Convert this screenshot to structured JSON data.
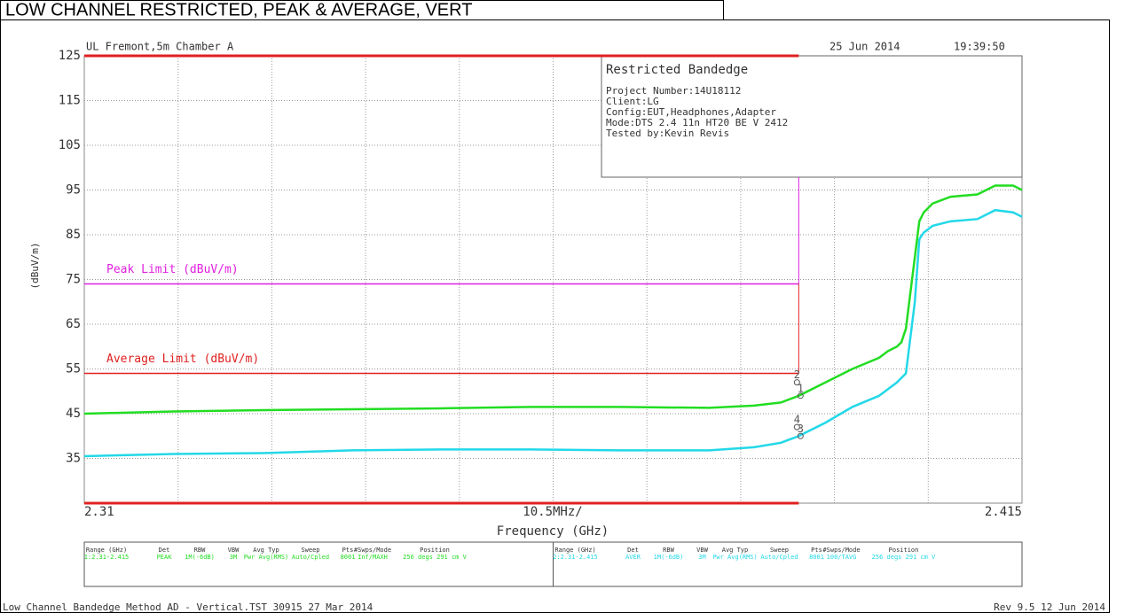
{
  "chart_data": {
    "type": "line",
    "title": "LOW CHANNEL RESTRICTED, PEAK & AVERAGE, VERT",
    "header_left": "UL Fremont,5m Chamber A",
    "header_date": "25 Jun 2014",
    "header_time": "19:39:50",
    "ylabel": "(dBuV/m)",
    "xlabel": "Frequency (GHz)",
    "x_span_label": "10.5MHz/",
    "xlim": [
      2.31,
      2.415
    ],
    "xticks": [
      2.31,
      2.415
    ],
    "x_divisions": 10,
    "ylim": [
      25,
      125
    ],
    "yticks": [
      35,
      45,
      55,
      65,
      75,
      85,
      95,
      105,
      115,
      125
    ],
    "grid": true,
    "band_edge": 2.39,
    "limits": [
      {
        "name": "Peak Limit (dBuV/m)",
        "value": 74,
        "color": "#e020e0"
      },
      {
        "name": "Average Limit (dBuV/m)",
        "value": 54,
        "color": "#e02020"
      }
    ],
    "info_box": {
      "title": "Restricted Bandedge",
      "lines": [
        "Project Number:14U18112",
        "Client:LG",
        "Config:EUT,Headphones,Adapter",
        "Mode:DTS 2.4 11n HT20 BE V 2412",
        "Tested by:Kevin Revis"
      ]
    },
    "x": [
      2.31,
      2.32,
      2.33,
      2.34,
      2.35,
      2.36,
      2.37,
      2.38,
      2.385,
      2.388,
      2.39,
      2.393,
      2.396,
      2.399,
      2.4,
      2.401,
      2.4015,
      2.402,
      2.403,
      2.4035,
      2.404,
      2.405,
      2.407,
      2.41,
      2.412,
      2.414,
      2.415
    ],
    "series": [
      {
        "color": "#22dd22",
        "values": [
          45,
          45.5,
          45.8,
          46,
          46.2,
          46.5,
          46.5,
          46.3,
          46.8,
          47.5,
          49,
          52,
          55,
          57.5,
          59,
          60,
          61,
          64,
          80,
          88,
          90,
          92,
          93.5,
          94,
          96,
          96,
          95
        ]
      },
      {
        "color": "#22d8e8",
        "values": [
          35.5,
          36,
          36.2,
          36.8,
          37,
          37,
          36.8,
          36.8,
          37.5,
          38.5,
          40,
          43,
          46.5,
          49,
          50.5,
          52,
          53,
          54,
          70,
          84,
          85.5,
          87,
          88,
          88.5,
          90.5,
          90,
          89
        ]
      }
    ],
    "markers": [
      {
        "label": "2",
        "x": 2.3898,
        "value": 52
      },
      {
        "label": "1",
        "x": 2.3902,
        "value": 49
      },
      {
        "label": "4",
        "x": 2.3898,
        "value": 42
      },
      {
        "label": "3",
        "x": 2.3902,
        "value": 40
      }
    ],
    "settings_table": {
      "headers": [
        "Range (GHz)",
        "Det",
        "RBW",
        "VBW",
        "Avg Typ",
        "Sweep",
        "Pts",
        "#Swps/Mode",
        "Position"
      ],
      "rows": [
        [
          "1:2.31-2.415",
          "PEAK",
          "1M(-6dB)",
          "3M",
          "Pwr Avg(RMS)",
          "Auto/Cpled",
          "8001",
          "Inf/MAXH",
          "256 degs 291 cm V"
        ],
        [
          "2:2.31-2.415",
          "AVER",
          "1M(-6dB)",
          "3M",
          "Pwr Avg(RMS)",
          "Auto/Cpled",
          "8001",
          "100/TAVG",
          "256 degs 291 cm V"
        ]
      ]
    },
    "footer_left": "Low Channel Bandedge Method AD - Vertical.TST 30915 27 Mar 2014",
    "footer_right": "Rev 9.5 12 Jun 2014"
  }
}
